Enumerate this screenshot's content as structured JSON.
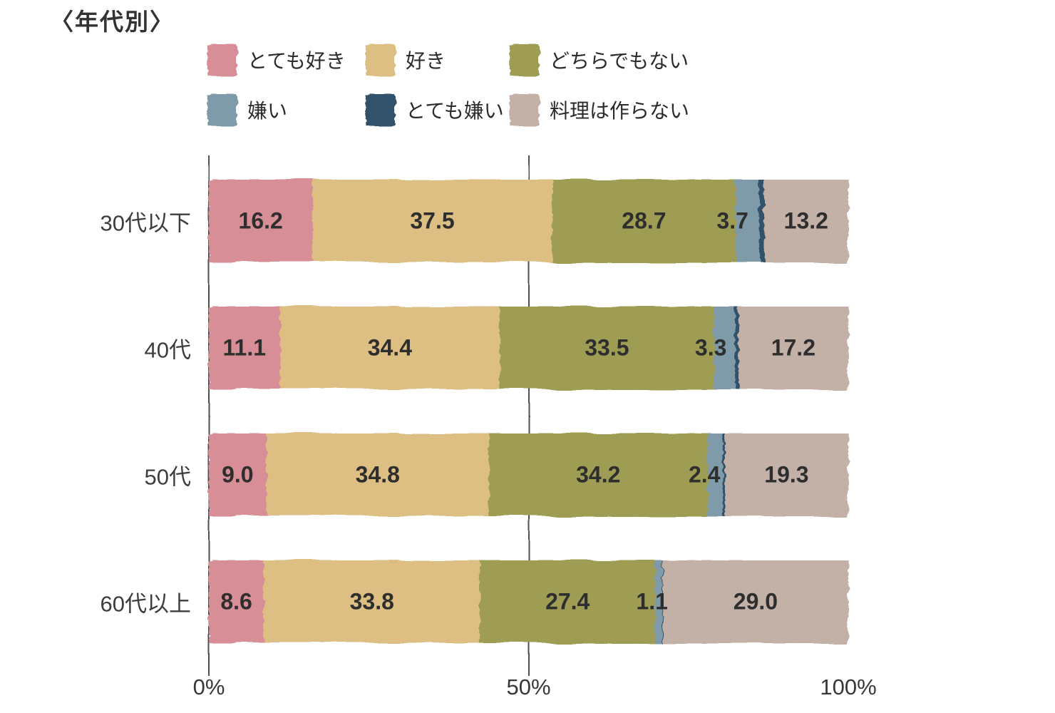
{
  "title": "〈年代別〉",
  "legend": {
    "items": [
      {
        "label": "とても好き",
        "color": "#D88E97"
      },
      {
        "label": "好き",
        "color": "#DDBE83"
      },
      {
        "label": "どちらでもない",
        "color": "#9E9D52"
      },
      {
        "label": "嫌い",
        "color": "#7F9AA8"
      },
      {
        "label": "とても嫌い",
        "color": "#33516B"
      },
      {
        "label": "料理は作らない",
        "color": "#C3B1A8"
      }
    ]
  },
  "chart_data": {
    "type": "bar",
    "stacked": true,
    "orientation": "horizontal",
    "title": "〈年代別〉",
    "categories": [
      "30代以下",
      "40代",
      "50代",
      "60代以上"
    ],
    "series": [
      {
        "name": "とても好き",
        "color": "#D88E97",
        "values": [
          16.2,
          11.1,
          9.0,
          8.6
        ]
      },
      {
        "name": "好き",
        "color": "#DDBE83",
        "values": [
          37.5,
          34.4,
          34.8,
          33.8
        ]
      },
      {
        "name": "どちらでもない",
        "color": "#9E9D52",
        "values": [
          28.7,
          33.5,
          34.2,
          27.4
        ]
      },
      {
        "name": "嫌い",
        "color": "#7F9AA8",
        "values": [
          3.7,
          3.3,
          2.4,
          1.1
        ]
      },
      {
        "name": "とても嫌い",
        "color": "#33516B",
        "values": [
          0.7,
          0.5,
          0.3,
          0.1
        ]
      },
      {
        "name": "料理は作らない",
        "color": "#C3B1A8",
        "values": [
          13.2,
          17.2,
          19.3,
          29.0
        ]
      }
    ],
    "xlim": [
      0,
      100
    ],
    "x_ticks": [
      {
        "label": "0%",
        "pos": 0,
        "gridline": true
      },
      {
        "label": "50%",
        "pos": 50,
        "gridline": true
      },
      {
        "label": "100%",
        "pos": 100,
        "gridline": false
      }
    ],
    "value_labels_shown_min": 1.0,
    "legend_position": "top",
    "grid": "x-only"
  }
}
